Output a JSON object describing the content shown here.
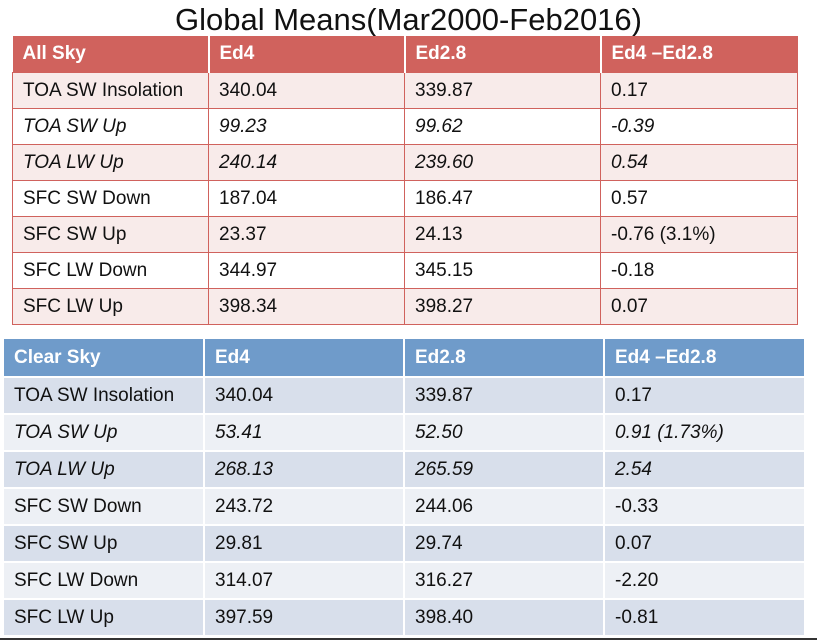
{
  "title": "Global Means(Mar2000-Feb2016)",
  "all_sky": {
    "headers": [
      "All Sky",
      "Ed4",
      "Ed2.8",
      "Ed4 –Ed2.8"
    ],
    "rows": [
      {
        "label": "TOA SW Insolation",
        "ed4": "340.04",
        "ed28": "339.87",
        "diff": "0.17",
        "italic": false
      },
      {
        "label": "TOA SW Up",
        "ed4": "99.23",
        "ed28": "99.62",
        "diff": "-0.39",
        "italic": true
      },
      {
        "label": "TOA LW Up",
        "ed4": "240.14",
        "ed28": "239.60",
        "diff": "0.54",
        "italic": true
      },
      {
        "label": "SFC SW Down",
        "ed4": "187.04",
        "ed28": "186.47",
        "diff": "0.57",
        "italic": false
      },
      {
        "label": "SFC SW Up",
        "ed4": "23.37",
        "ed28": "24.13",
        "diff": "-0.76 (3.1%)",
        "italic": false
      },
      {
        "label": "SFC LW Down",
        "ed4": "344.97",
        "ed28": "345.15",
        "diff": "-0.18",
        "italic": false
      },
      {
        "label": "SFC LW Up",
        "ed4": "398.34",
        "ed28": "398.27",
        "diff": "0.07",
        "italic": false
      }
    ]
  },
  "clear_sky": {
    "headers": [
      "Clear Sky",
      "Ed4",
      "Ed2.8",
      "Ed4 –Ed2.8"
    ],
    "rows": [
      {
        "label": "TOA SW Insolation",
        "ed4": "340.04",
        "ed28": "339.87",
        "diff": "0.17",
        "italic": false
      },
      {
        "label": "TOA SW Up",
        "ed4": "53.41",
        "ed28": "52.50",
        "diff": "0.91 (1.73%)",
        "italic": true
      },
      {
        "label": "TOA LW Up",
        "ed4": "268.13",
        "ed28": "265.59",
        "diff": "2.54",
        "italic": true
      },
      {
        "label": "SFC SW Down",
        "ed4": "243.72",
        "ed28": "244.06",
        "diff": "-0.33",
        "italic": false
      },
      {
        "label": "SFC SW Up",
        "ed4": "29.81",
        "ed28": "29.74",
        "diff": "0.07",
        "italic": false
      },
      {
        "label": "SFC LW Down",
        "ed4": "314.07",
        "ed28": "316.27",
        "diff": "-2.20",
        "italic": false
      },
      {
        "label": "SFC LW Up",
        "ed4": "397.59",
        "ed28": "398.40",
        "diff": "-0.81",
        "italic": false
      }
    ]
  }
}
